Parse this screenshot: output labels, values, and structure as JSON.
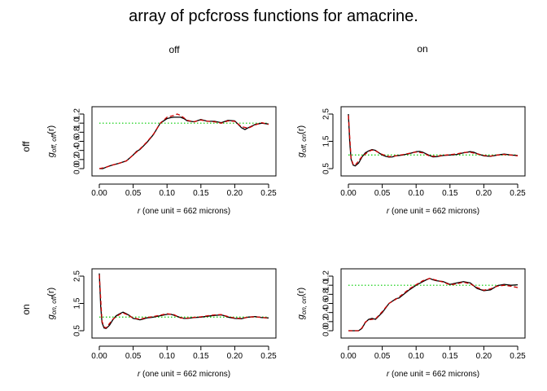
{
  "title": "array of pcfcross functions for amacrine.",
  "column_labels": [
    "off",
    "on"
  ],
  "row_labels": [
    "off",
    "on"
  ],
  "colors": {
    "observed": "#000000",
    "theoretical": "#00cc00",
    "estimate": "#cc0000"
  },
  "chart_data": [
    {
      "type": "line",
      "panel": "off-off",
      "xlabel_italic": "r",
      "xlabel_rest": " (one unit = 662 microns)",
      "ylabel": {
        "g": "g",
        "sub": "off, off",
        "arg": "(r)"
      },
      "xlim": [
        0,
        0.25
      ],
      "ylim": [
        0,
        1.2
      ],
      "x_ticks": [
        "0.00",
        "0.05",
        "0.10",
        "0.15",
        "0.20",
        "0.25"
      ],
      "y_ticks": [
        "0.0",
        "0.2",
        "0.4",
        "0.6",
        "0.8",
        "1.0",
        "1.2"
      ],
      "reference": 1.0,
      "series": [
        {
          "style": "observed",
          "x": [
            0,
            0.005,
            0.01,
            0.015,
            0.02,
            0.03,
            0.04,
            0.05,
            0.055,
            0.06,
            0.07,
            0.08,
            0.09,
            0.1,
            0.105,
            0.11,
            0.12,
            0.125,
            0.13,
            0.14,
            0.15,
            0.16,
            0.17,
            0.18,
            0.19,
            0.2,
            0.21,
            0.215,
            0.22,
            0.23,
            0.24,
            0.25
          ],
          "y": [
            0.0,
            0.0,
            0.03,
            0.06,
            0.08,
            0.12,
            0.17,
            0.3,
            0.38,
            0.42,
            0.57,
            0.75,
            1.0,
            1.1,
            1.12,
            1.13,
            1.13,
            1.1,
            1.05,
            1.03,
            1.08,
            1.04,
            1.04,
            1.01,
            1.06,
            1.05,
            0.9,
            0.86,
            0.9,
            0.97,
            1.0,
            0.98
          ]
        },
        {
          "style": "estimate",
          "x": [
            0,
            0.01,
            0.02,
            0.03,
            0.04,
            0.05,
            0.06,
            0.07,
            0.08,
            0.09,
            0.1,
            0.11,
            0.115,
            0.12,
            0.13,
            0.14,
            0.15,
            0.16,
            0.17,
            0.18,
            0.19,
            0.2,
            0.21,
            0.22,
            0.23,
            0.24,
            0.25
          ],
          "y": [
            0.0,
            0.03,
            0.08,
            0.12,
            0.17,
            0.3,
            0.43,
            0.58,
            0.76,
            1.0,
            1.13,
            1.17,
            1.2,
            1.17,
            1.06,
            1.03,
            1.07,
            1.04,
            1.03,
            1.0,
            1.05,
            1.04,
            0.92,
            0.89,
            0.96,
            1.01,
            0.97
          ]
        }
      ]
    },
    {
      "type": "line",
      "panel": "off-on",
      "xlabel_italic": "r",
      "xlabel_rest": " (one unit = 662 microns)",
      "ylabel": {
        "g": "g",
        "sub": "off, on",
        "arg": "(r)"
      },
      "xlim": [
        0,
        0.25
      ],
      "ylim": [
        0.5,
        2.5
      ],
      "x_ticks": [
        "0.00",
        "0.05",
        "0.10",
        "0.15",
        "0.20",
        "0.25"
      ],
      "y_ticks": [
        "0.5",
        "1.5",
        "2.5"
      ],
      "reference": 1.0,
      "series": [
        {
          "style": "observed",
          "x": [
            0.0,
            0.002,
            0.004,
            0.007,
            0.01,
            0.015,
            0.02,
            0.025,
            0.03,
            0.035,
            0.04,
            0.045,
            0.05,
            0.055,
            0.06,
            0.065,
            0.07,
            0.08,
            0.09,
            0.1,
            0.105,
            0.11,
            0.12,
            0.125,
            0.13,
            0.14,
            0.15,
            0.16,
            0.17,
            0.18,
            0.185,
            0.19,
            0.2,
            0.21,
            0.22,
            0.23,
            0.24,
            0.25
          ],
          "y": [
            2.5,
            1.45,
            0.85,
            0.63,
            0.6,
            0.7,
            0.92,
            1.08,
            1.15,
            1.2,
            1.17,
            1.08,
            1.0,
            0.95,
            0.92,
            0.93,
            0.97,
            1.0,
            1.05,
            1.12,
            1.13,
            1.1,
            0.98,
            0.93,
            0.94,
            0.98,
            1.0,
            1.02,
            1.08,
            1.12,
            1.1,
            1.05,
            0.97,
            0.95,
            1.0,
            1.03,
            1.0,
            0.98
          ]
        },
        {
          "style": "estimate",
          "x": [
            0.0,
            0.004,
            0.007,
            0.01,
            0.02,
            0.03,
            0.035,
            0.04,
            0.05,
            0.06,
            0.07,
            0.08,
            0.09,
            0.1,
            0.11,
            0.12,
            0.13,
            0.14,
            0.15,
            0.16,
            0.17,
            0.18,
            0.19,
            0.2,
            0.21,
            0.22,
            0.23,
            0.24,
            0.25
          ],
          "y": [
            2.45,
            0.88,
            0.66,
            0.62,
            0.94,
            1.13,
            1.18,
            1.15,
            1.02,
            0.94,
            0.97,
            1.01,
            1.06,
            1.11,
            1.08,
            0.96,
            0.95,
            0.99,
            1.01,
            1.04,
            1.09,
            1.1,
            1.04,
            0.98,
            0.96,
            1.0,
            1.02,
            1.0,
            0.97
          ]
        }
      ]
    },
    {
      "type": "line",
      "panel": "on-off",
      "xlabel_italic": "r",
      "xlabel_rest": " (one unit = 662 microns)",
      "ylabel": {
        "g": "g",
        "sub": "on, off",
        "arg": "(r)"
      },
      "xlim": [
        0,
        0.25
      ],
      "ylim": [
        0.5,
        2.5
      ],
      "x_ticks": [
        "0.00",
        "0.05",
        "0.10",
        "0.15",
        "0.20",
        "0.25"
      ],
      "y_ticks": [
        "0.5",
        "1.5",
        "2.5"
      ],
      "reference": 1.0,
      "series": [
        {
          "style": "observed",
          "x": [
            0.0,
            0.002,
            0.004,
            0.007,
            0.01,
            0.015,
            0.02,
            0.025,
            0.03,
            0.035,
            0.04,
            0.045,
            0.05,
            0.055,
            0.06,
            0.065,
            0.07,
            0.08,
            0.09,
            0.1,
            0.105,
            0.11,
            0.12,
            0.125,
            0.13,
            0.14,
            0.15,
            0.16,
            0.17,
            0.18,
            0.185,
            0.19,
            0.2,
            0.21,
            0.22,
            0.23,
            0.24,
            0.25
          ],
          "y": [
            2.6,
            1.4,
            0.8,
            0.6,
            0.58,
            0.7,
            0.9,
            1.05,
            1.12,
            1.18,
            1.12,
            1.05,
            0.95,
            0.93,
            0.9,
            0.93,
            0.97,
            1.0,
            1.05,
            1.1,
            1.11,
            1.07,
            0.98,
            0.95,
            0.95,
            0.98,
            1.0,
            1.03,
            1.06,
            1.08,
            1.05,
            1.0,
            0.95,
            0.94,
            1.0,
            1.02,
            0.98,
            0.97
          ]
        },
        {
          "style": "estimate",
          "x": [
            0.0,
            0.004,
            0.007,
            0.01,
            0.02,
            0.03,
            0.035,
            0.04,
            0.05,
            0.06,
            0.07,
            0.08,
            0.09,
            0.1,
            0.11,
            0.12,
            0.13,
            0.14,
            0.15,
            0.16,
            0.17,
            0.18,
            0.19,
            0.2,
            0.21,
            0.22,
            0.23,
            0.24,
            0.25
          ],
          "y": [
            2.55,
            0.85,
            0.64,
            0.6,
            0.92,
            1.1,
            1.15,
            1.1,
            0.97,
            0.92,
            0.98,
            1.02,
            1.07,
            1.12,
            1.09,
            0.97,
            0.96,
            0.99,
            1.01,
            1.05,
            1.08,
            1.09,
            1.02,
            0.96,
            0.95,
            1.0,
            1.01,
            0.99,
            0.96
          ]
        }
      ]
    },
    {
      "type": "line",
      "panel": "on-on",
      "xlabel_italic": "r",
      "xlabel_rest": " (one unit = 662 microns)",
      "ylabel": {
        "g": "g",
        "sub": "on, on",
        "arg": "(r)"
      },
      "xlim": [
        0,
        0.25
      ],
      "ylim": [
        0,
        1.2
      ],
      "x_ticks": [
        "0.00",
        "0.05",
        "0.10",
        "0.15",
        "0.20",
        "0.25"
      ],
      "y_ticks": [
        "0.0",
        "0.2",
        "0.4",
        "0.6",
        "0.8",
        "1.0",
        "1.2"
      ],
      "reference": 1.0,
      "series": [
        {
          "style": "observed",
          "x": [
            0.0,
            0.005,
            0.01,
            0.015,
            0.02,
            0.025,
            0.03,
            0.035,
            0.04,
            0.05,
            0.055,
            0.06,
            0.07,
            0.075,
            0.08,
            0.09,
            0.1,
            0.11,
            0.115,
            0.12,
            0.125,
            0.13,
            0.14,
            0.15,
            0.16,
            0.17,
            0.18,
            0.19,
            0.2,
            0.21,
            0.22,
            0.23,
            0.24,
            0.25
          ],
          "y": [
            0.0,
            0.0,
            0.0,
            0.0,
            0.05,
            0.18,
            0.25,
            0.27,
            0.25,
            0.4,
            0.5,
            0.6,
            0.7,
            0.72,
            0.78,
            0.9,
            1.0,
            1.08,
            1.12,
            1.15,
            1.12,
            1.1,
            1.08,
            1.02,
            1.05,
            1.08,
            1.05,
            0.93,
            0.88,
            0.9,
            0.99,
            1.02,
            1.0,
            1.01
          ]
        },
        {
          "style": "estimate",
          "x": [
            0.0,
            0.01,
            0.015,
            0.02,
            0.025,
            0.03,
            0.04,
            0.05,
            0.06,
            0.07,
            0.08,
            0.09,
            0.1,
            0.11,
            0.12,
            0.13,
            0.14,
            0.15,
            0.16,
            0.17,
            0.18,
            0.19,
            0.2,
            0.21,
            0.22,
            0.23,
            0.24,
            0.25
          ],
          "y": [
            0.0,
            0.0,
            0.0,
            0.06,
            0.19,
            0.24,
            0.26,
            0.42,
            0.6,
            0.69,
            0.8,
            0.92,
            1.01,
            1.1,
            1.15,
            1.11,
            1.07,
            1.01,
            1.03,
            1.07,
            1.03,
            0.95,
            0.89,
            0.92,
            0.98,
            1.0,
            0.98,
            0.95
          ]
        }
      ]
    }
  ]
}
